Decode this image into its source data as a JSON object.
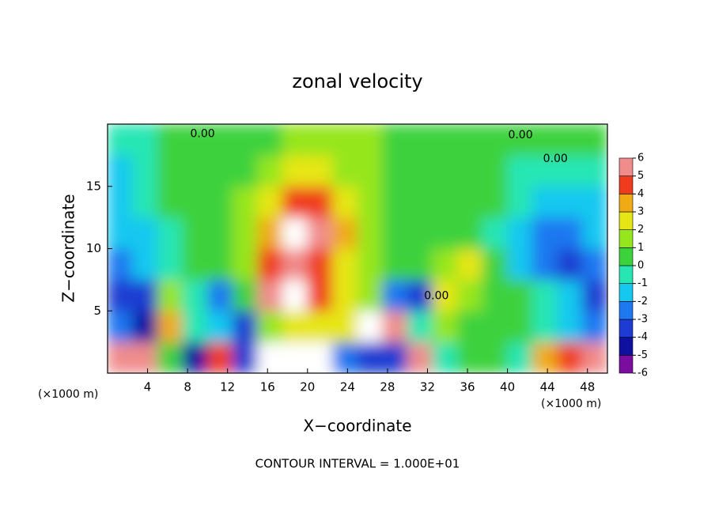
{
  "chart_data": {
    "type": "heatmap",
    "title": "zonal velocity",
    "subtitle": "CONTOUR INTERVAL = 1.000E+01",
    "x_label": "X−coordinate",
    "y_label": "Z−coordinate",
    "x_unit_label": "(×1000 m)",
    "y_unit_label": "(×1000 m)",
    "xlim": [
      0,
      50
    ],
    "ylim": [
      0,
      20
    ],
    "xticks": [
      4,
      8,
      12,
      16,
      20,
      24,
      28,
      32,
      36,
      40,
      44,
      48
    ],
    "yticks": [
      5,
      10,
      15
    ],
    "x": [
      1.25,
      3.75,
      6.25,
      8.75,
      11.25,
      13.75,
      16.25,
      18.75,
      21.25,
      23.75,
      26.25,
      28.75,
      31.25,
      33.75,
      36.25,
      38.75,
      41.25,
      43.75,
      46.25,
      48.75
    ],
    "y": [
      1.25,
      3.75,
      6.25,
      8.75,
      11.25,
      13.75,
      16.25,
      18.75
    ],
    "z": [
      [
        5,
        5,
        0,
        -5,
        4,
        -4,
        7,
        7,
        7,
        -3,
        -4,
        -4,
        6,
        -1,
        0,
        0,
        -1,
        3,
        4,
        5
      ],
      [
        -3,
        -5,
        3,
        -1,
        -2,
        -4,
        1,
        2,
        2,
        2,
        7,
        5,
        -1,
        1,
        0,
        0,
        0,
        -1,
        -2,
        -3
      ],
      [
        -4,
        -4,
        1,
        -1,
        -3,
        0,
        5,
        7,
        4,
        2,
        1,
        -3,
        -4,
        2,
        1,
        0,
        0,
        -1,
        -2,
        -4
      ],
      [
        -2.5,
        -2,
        -0.5,
        0.5,
        0.5,
        1,
        4,
        5,
        4,
        2.5,
        1,
        0.5,
        0.5,
        1,
        2,
        0,
        -1.5,
        -3,
        -3.5,
        -3
      ],
      [
        -2,
        -2,
        -0.5,
        0.5,
        0.5,
        1,
        3,
        7,
        5,
        3,
        1.5,
        0.5,
        0.5,
        0.5,
        0.5,
        -0.5,
        -2,
        -3,
        -3,
        -2
      ],
      [
        -1.5,
        -1,
        0,
        0.5,
        0.5,
        1,
        2,
        4,
        4,
        2.5,
        1.5,
        0.5,
        0.5,
        0.5,
        0.5,
        0,
        -1,
        -2,
        -1.5,
        -1.5
      ],
      [
        -1.5,
        -1,
        0,
        0.5,
        0.5,
        0.5,
        1,
        2,
        2.5,
        1.5,
        1,
        0.5,
        0.5,
        0.5,
        0.5,
        0,
        -0.5,
        -1,
        -1,
        -1
      ],
      [
        -0.5,
        -0.5,
        0,
        0,
        0.5,
        0.5,
        0.5,
        1,
        1,
        1,
        1,
        0.5,
        0.5,
        0.5,
        0.5,
        0.5,
        0,
        0,
        0,
        0
      ]
    ],
    "colorbar_levels": [
      -6,
      -5,
      -4,
      -3,
      -2,
      -1,
      0,
      1,
      2,
      3,
      4,
      5,
      6
    ],
    "colors": [
      "#7b0d9e",
      "#1010a0",
      "#1e3cd2",
      "#1e78f0",
      "#14c8f0",
      "#28e6b4",
      "#3cd23c",
      "#96e61e",
      "#e6e614",
      "#f0aa14",
      "#f03c1e",
      "#f08c8c"
    ],
    "over_color": "#ffffff",
    "contour_labels": [
      {
        "text": "0.00",
        "x": 9.5,
        "y": 19.2
      },
      {
        "text": "0.00",
        "x": 41.3,
        "y": 19.1
      },
      {
        "text": "0.00",
        "x": 44.8,
        "y": 17.2
      },
      {
        "text": "0.00",
        "x": 32.9,
        "y": 6.2
      }
    ]
  }
}
